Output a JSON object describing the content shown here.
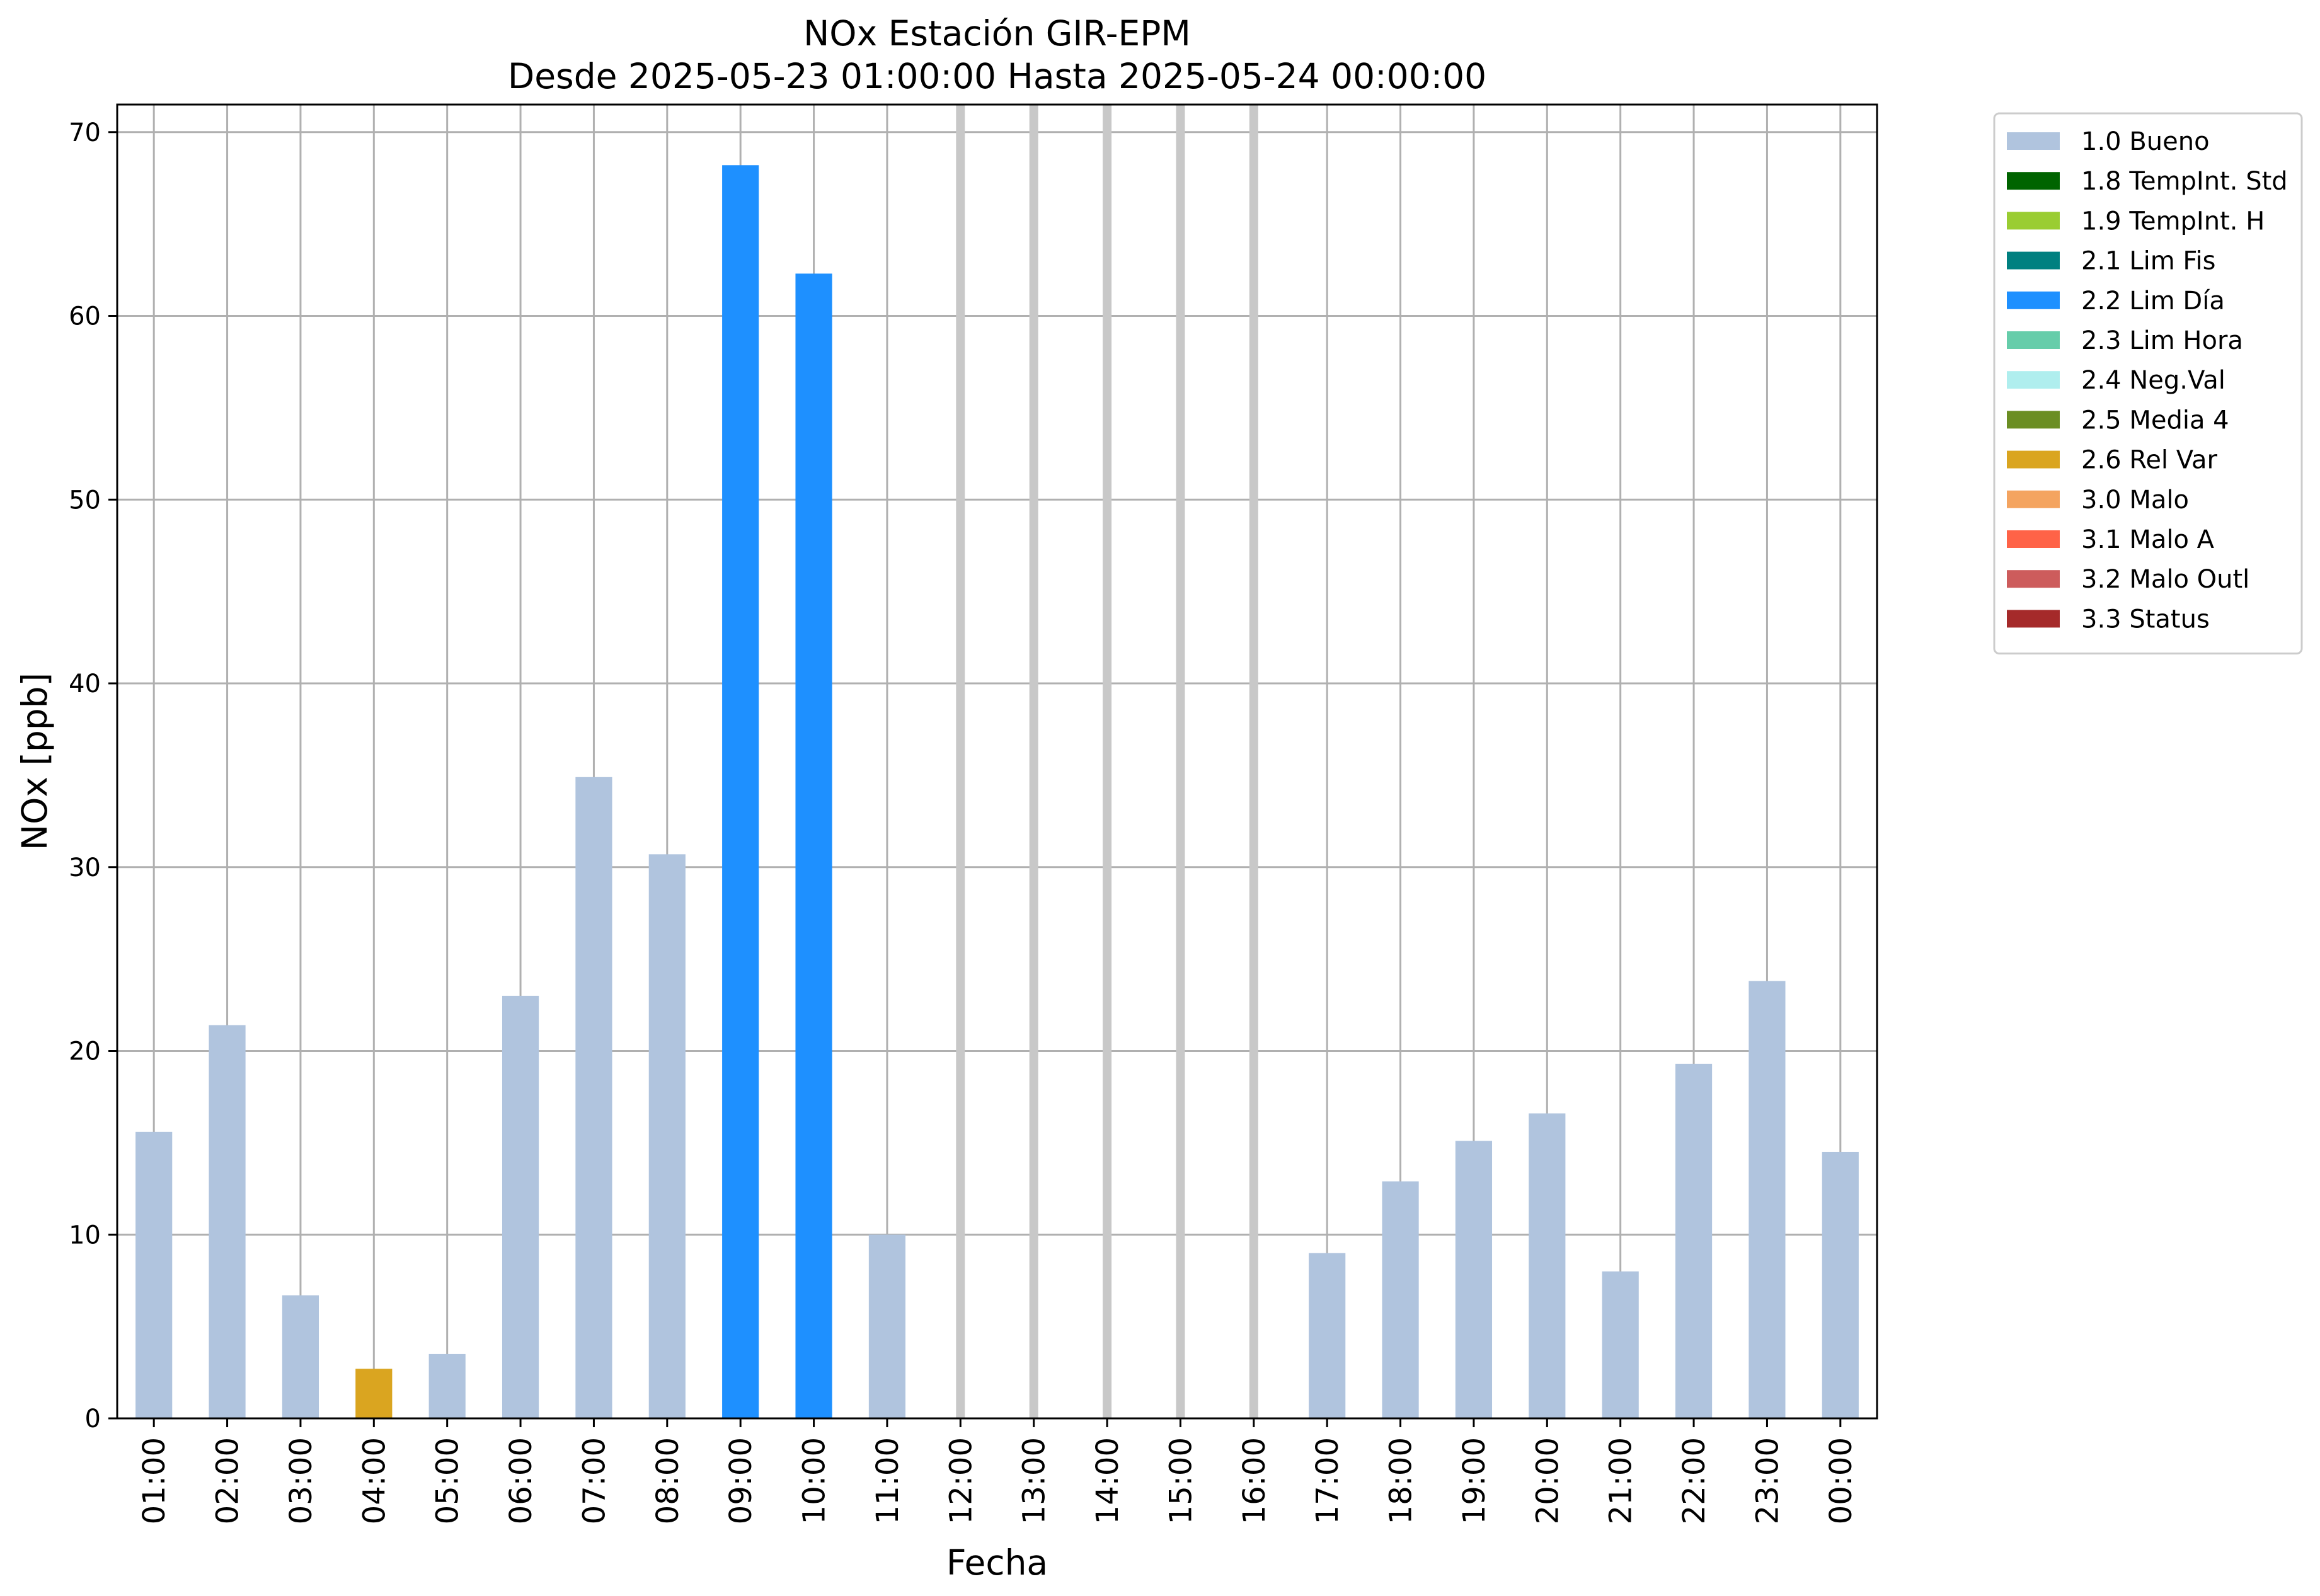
{
  "chart_data": {
    "type": "bar",
    "title": "NOx Estación GIR-EPM",
    "subtitle": "Desde 2025-05-23 01:00:00 Hasta 2025-05-24 00:00:00",
    "xlabel": "Fecha",
    "ylabel": "NOx [ppb]",
    "ylim": [
      0,
      71.5
    ],
    "yticks": [
      0,
      10,
      20,
      30,
      40,
      50,
      60,
      70
    ],
    "grid": true,
    "legend_position": "outside-top-right",
    "categories": [
      "01:00",
      "02:00",
      "03:00",
      "04:00",
      "05:00",
      "06:00",
      "07:00",
      "08:00",
      "09:00",
      "10:00",
      "11:00",
      "12:00",
      "13:00",
      "14:00",
      "15:00",
      "16:00",
      "17:00",
      "18:00",
      "19:00",
      "20:00",
      "21:00",
      "22:00",
      "23:00",
      "00:00"
    ],
    "values": [
      15.6,
      21.4,
      6.7,
      2.7,
      3.5,
      23.0,
      34.9,
      30.7,
      68.2,
      62.3,
      10.0,
      null,
      null,
      null,
      null,
      null,
      9.0,
      12.9,
      15.1,
      16.6,
      8.0,
      19.3,
      23.8,
      14.5
    ],
    "flags": [
      "1.0 Bueno",
      "1.0 Bueno",
      "1.0 Bueno",
      "2.6 Rel Var",
      "1.0 Bueno",
      "1.0 Bueno",
      "1.0 Bueno",
      "1.0 Bueno",
      "2.2 Lim Día",
      "2.2 Lim Día",
      "1.0 Bueno",
      null,
      null,
      null,
      null,
      null,
      "1.0 Bueno",
      "1.0 Bueno",
      "1.0 Bueno",
      "1.0 Bueno",
      "1.0 Bueno",
      "1.0 Bueno",
      "1.0 Bueno",
      "1.0 Bueno"
    ],
    "missing_color": "#c8c8c8",
    "legend": [
      {
        "label": "1.0 Bueno",
        "color": "#b0c4de"
      },
      {
        "label": "1.8 TempInt. Std",
        "color": "#006400"
      },
      {
        "label": "1.9 TempInt. H",
        "color": "#9acd32"
      },
      {
        "label": "2.1 Lim Fis",
        "color": "#008080"
      },
      {
        "label": "2.2 Lim Día",
        "color": "#1e90ff"
      },
      {
        "label": "2.3 Lim Hora",
        "color": "#66cdaa"
      },
      {
        "label": "2.4 Neg.Val",
        "color": "#afeeee"
      },
      {
        "label": "2.5 Media 4",
        "color": "#6b8e23"
      },
      {
        "label": "2.6 Rel Var",
        "color": "#daa520"
      },
      {
        "label": "3.0 Malo",
        "color": "#f4a460"
      },
      {
        "label": "3.1 Malo A",
        "color": "#ff6347"
      },
      {
        "label": "3.2 Malo Outl",
        "color": "#cd5c5c"
      },
      {
        "label": "3.3 Status",
        "color": "#a52a2a"
      }
    ]
  }
}
